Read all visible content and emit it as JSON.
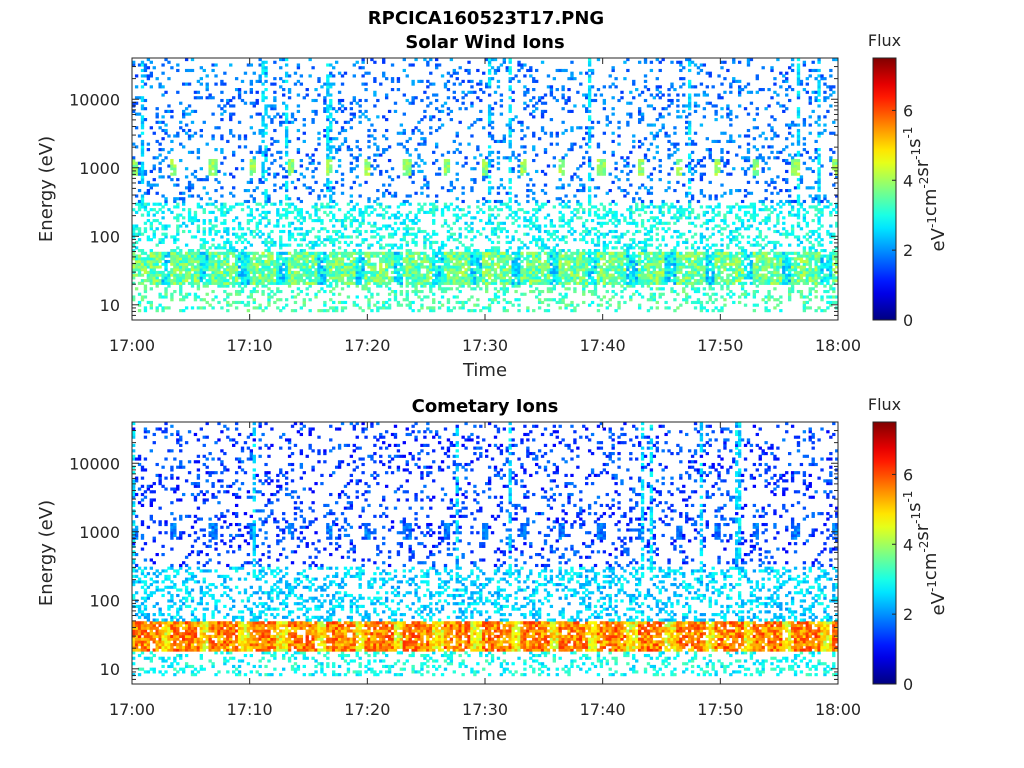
{
  "figure_title": "RPCICA160523T17.PNG",
  "chart_data": [
    {
      "type": "heatmap",
      "title": "Solar Wind Ions",
      "xlabel": "Time",
      "ylabel": "Energy (eV)",
      "x_ticks": [
        "17:00",
        "17:10",
        "17:20",
        "17:30",
        "17:40",
        "17:50",
        "18:00"
      ],
      "xlim": [
        "17:00",
        "18:00"
      ],
      "y_scale": "log",
      "y_ticks": [
        10,
        100,
        1000,
        10000
      ],
      "y_tick_labels": [
        "10",
        "100",
        "1000",
        "10000"
      ],
      "ylim": [
        6,
        40000
      ],
      "colorbar": {
        "title": "Flux",
        "label": "eV",
        "label_parts": [
          "eV",
          "-1",
          "cm",
          "-2",
          "sr",
          "-1",
          "s",
          "-1"
        ],
        "range": [
          0,
          7.5
        ],
        "ticks": [
          0,
          2,
          4,
          6
        ],
        "tick_labels": [
          "0",
          "2",
          "4",
          "6"
        ],
        "colormap": "jet"
      },
      "features": {
        "sweep_period_min": 3.3,
        "periodic_peak_energy_eV": 1000,
        "periodic_peak_flux": 3.5,
        "low_energy_band_eV": [
          20,
          60
        ],
        "low_energy_band_flux": 3.6,
        "background_flux": 1.6
      }
    },
    {
      "type": "heatmap",
      "title": "Cometary Ions",
      "xlabel": "Time",
      "ylabel": "Energy (eV)",
      "x_ticks": [
        "17:00",
        "17:10",
        "17:20",
        "17:30",
        "17:40",
        "17:50",
        "18:00"
      ],
      "xlim": [
        "17:00",
        "18:00"
      ],
      "y_scale": "log",
      "y_ticks": [
        10,
        100,
        1000,
        10000
      ],
      "y_tick_labels": [
        "10",
        "100",
        "1000",
        "10000"
      ],
      "ylim": [
        6,
        40000
      ],
      "colorbar": {
        "title": "Flux",
        "label": "eV",
        "label_parts": [
          "eV",
          "-1",
          "cm",
          "-2",
          "sr",
          "-1",
          "s",
          "-1"
        ],
        "range": [
          0,
          7.5
        ],
        "ticks": [
          0,
          2,
          4,
          6
        ],
        "tick_labels": [
          "0",
          "2",
          "4",
          "6"
        ],
        "colormap": "jet"
      },
      "features": {
        "sweep_period_min": 3.3,
        "periodic_peak_energy_eV": 1000,
        "periodic_peak_flux": 1.4,
        "low_energy_band_eV": [
          18,
          50
        ],
        "low_energy_band_flux": 5.6,
        "background_flux": 1.2
      }
    }
  ]
}
